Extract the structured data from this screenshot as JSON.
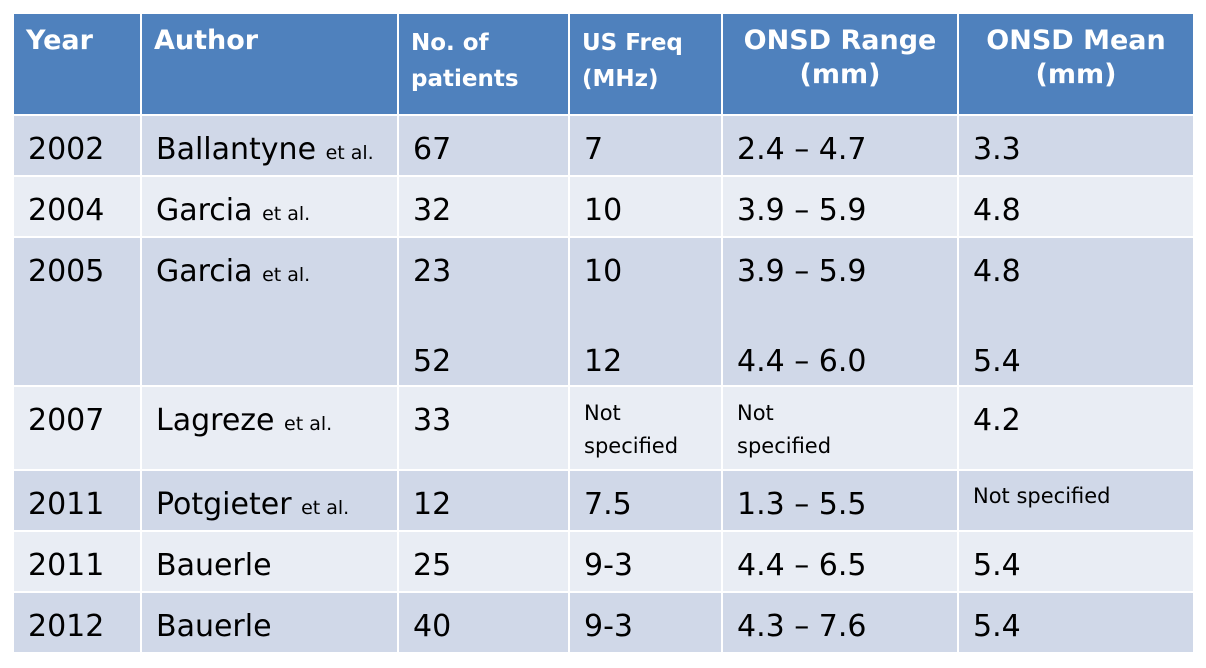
{
  "headers": {
    "year": "Year",
    "author": "Author",
    "patients_line1": "No. of",
    "patients_line2": "patients",
    "freq_line1": "US Freq",
    "freq_line2": "(MHz)",
    "range_line1": "ONSD Range",
    "range_line2": "(mm)",
    "mean_line1": "ONSD Mean",
    "mean_line2": "(mm)"
  },
  "etal": "et al.",
  "rows": [
    {
      "year": "2002",
      "author": "Ballantyne",
      "etal": true,
      "patients": "67",
      "freq": "7",
      "range": "2.4 – 4.7",
      "mean": "3.3"
    },
    {
      "year": "2004",
      "author": "Garcia",
      "etal": true,
      "patients": "32",
      "freq": "10",
      "range": "3.9 – 5.9",
      "mean": "4.8"
    },
    {
      "year": "2005",
      "author": "Garcia",
      "etal": true,
      "patients": "23",
      "patients2": "52",
      "freq": "10",
      "freq2": "12",
      "range": "3.9 – 5.9",
      "range2": "4.4 – 6.0",
      "mean": "4.8",
      "mean2": "5.4"
    },
    {
      "year": "2007",
      "author": "Lagreze",
      "etal": true,
      "patients": "33",
      "freq_line1": "Not",
      "freq_line2": "specified",
      "range_line1": "Not",
      "range_line2": "specified",
      "mean": "4.2"
    },
    {
      "year": "2011",
      "author": "Potgieter",
      "etal": true,
      "patients": "12",
      "freq": "7.5",
      "range": "1.3 – 5.5",
      "mean": "Not specified"
    },
    {
      "year": "2011",
      "author": "Bauerle",
      "etal": false,
      "patients": "25",
      "freq": "9-3",
      "range": "4.4 – 6.5",
      "mean": "5.4"
    },
    {
      "year": "2012",
      "author": "Bauerle",
      "etal": false,
      "patients": "40",
      "freq": "9-3",
      "range": "4.3 – 7.6",
      "mean": "5.4"
    }
  ]
}
